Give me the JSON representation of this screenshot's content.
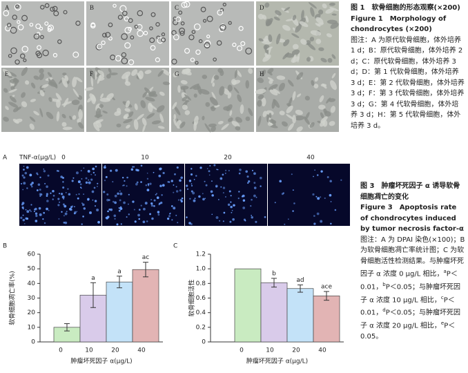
{
  "figure1": {
    "panel_labels": [
      "A",
      "B",
      "C",
      "D",
      "E",
      "F",
      "G",
      "H"
    ],
    "caption": {
      "title": "图 1　软骨细胞的形态观察(×200)",
      "title_en": "Figure 1　Morphology of chondrocytes (×200)",
      "note": "图注：A 为原代软骨细胞，体外培养 1 d；B：原代软骨细胞，体外培养 2 d；C：原代软骨细胞，体外培养 3 d；D：第 1 代软骨细胞，体外培养 3 d；E：第 2 代软骨细胞，体外培养 3 d；F：第 3 代软骨细胞，体外培养 3 d；G：第 4 代软骨细胞，体外培养 3 d；H：第 5 代软骨细胞，体外培养 3 d。"
    }
  },
  "figure3": {
    "panel_a": {
      "label": "A",
      "axis_label": "TNF-α(μg/L)",
      "concentrations": [
        "0",
        "10",
        "20",
        "40"
      ]
    },
    "chart_b": {
      "label": "B",
      "y_label": "软骨细胞凋亡率(%)",
      "x_label": "肿瘤坏死因子 α(μg/L)",
      "categories": [
        "0",
        "10",
        "20",
        "40"
      ],
      "values": [
        10,
        32,
        41,
        49.5
      ],
      "errors": [
        2.5,
        8.5,
        4,
        5
      ],
      "significance": [
        null,
        "a",
        "a",
        "ac"
      ],
      "colors": [
        "#c9ebc1",
        "#d9cbea",
        "#c3e2f8",
        "#e2b4b4"
      ],
      "ylim": [
        0,
        60
      ],
      "yticks": [
        0,
        10,
        20,
        30,
        40,
        50,
        60
      ]
    },
    "chart_c": {
      "label": "C",
      "y_label": "软骨细胞活性",
      "x_label": "肿瘤坏死因子 α(μg/L)",
      "categories": [
        "0",
        "10",
        "20",
        "40"
      ],
      "values": [
        1,
        0.81,
        0.73,
        0.63
      ],
      "errors": [
        0,
        0.06,
        0.05,
        0.06
      ],
      "significance": [
        null,
        "b",
        "ad",
        "ace"
      ],
      "colors": [
        "#c9ebc1",
        "#d9cbea",
        "#c3e2f8",
        "#e2b4b4"
      ],
      "ylim": [
        0,
        1.2
      ],
      "yticks": [
        0,
        0.2,
        0.4,
        0.6,
        0.8,
        {
          "value": 1,
          "label": "1.0"
        },
        1.2
      ]
    },
    "caption": {
      "title": "图 3　肿瘤坏死因子 α 诱导软骨细胞凋亡的变化",
      "title_en": "Figure 3　Apoptosis rate of chondrocytes induced by tumor necrosis factor-α",
      "note": [
        "图注：A 为 DPAI 染色(×100)；B 为软骨细胞凋亡率统计图；C 为软骨细胞活性检测结果。与肿瘤坏死因子 α 浓度 0 μg/L 相比，",
        "a",
        "P＜0.01，",
        "b",
        "P＜0.05；与肿瘤坏死因子 α 浓度 10 μg/L 相比，",
        "c",
        "P＜0.01，",
        "d",
        "P＜0.05；与肿瘤坏死因子 α 浓度 20 μg/L 相比，",
        "e",
        "P＜0.05。"
      ]
    }
  }
}
